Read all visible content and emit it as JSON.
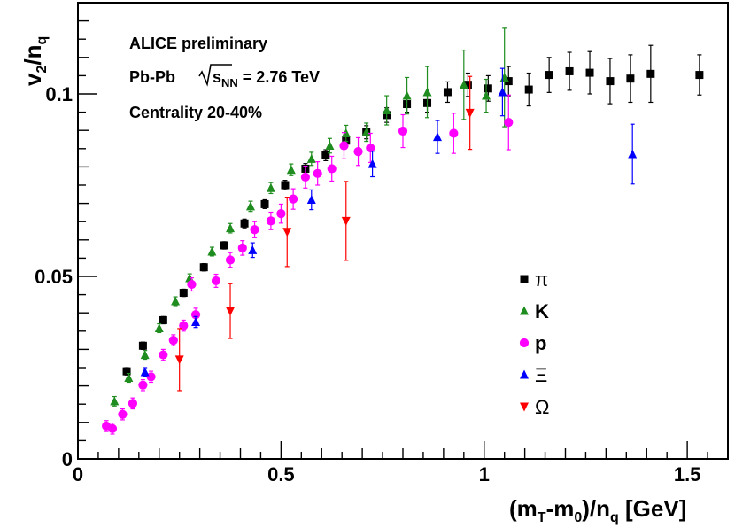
{
  "chart_data": {
    "type": "scatter",
    "title": "",
    "annotations": {
      "line1": "ALICE preliminary",
      "line2_prefix": "Pb-Pb ",
      "line2_sqrt_s": "s",
      "line2_sub": "NN",
      "line2_suffix": " = 2.76 TeV",
      "line3": "Centrality 20-40%"
    },
    "xlabel": {
      "part1": "(m",
      "sub1": "T",
      "part2": "-m",
      "sub2": "0",
      "part3": ")/n",
      "sub3": "q",
      "part4": " [GeV]"
    },
    "ylabel": {
      "main": "v",
      "sub1": "2",
      "mid": "/n",
      "sub2": "q"
    },
    "xlim": [
      0,
      1.6
    ],
    "ylim": [
      0,
      0.125
    ],
    "x_ticks": [
      {
        "value": 0,
        "label": "0"
      },
      {
        "value": 0.5,
        "label": "0.5"
      },
      {
        "value": 1.0,
        "label": "1"
      },
      {
        "value": 1.5,
        "label": "1.5"
      }
    ],
    "y_ticks": [
      {
        "value": 0,
        "label": "0"
      },
      {
        "value": 0.05,
        "label": "0.05"
      },
      {
        "value": 0.1,
        "label": "0.1"
      }
    ],
    "legend_position": "right-middle",
    "series": [
      {
        "name": "π",
        "marker": "square",
        "color": "#000000",
        "legend_bold": false,
        "points": [
          {
            "x": 0.12,
            "y": 0.024,
            "err": 0.001
          },
          {
            "x": 0.16,
            "y": 0.031,
            "err": 0.001
          },
          {
            "x": 0.21,
            "y": 0.038,
            "err": 0.001
          },
          {
            "x": 0.26,
            "y": 0.0455,
            "err": 0.001
          },
          {
            "x": 0.31,
            "y": 0.0525,
            "err": 0.001
          },
          {
            "x": 0.36,
            "y": 0.0585,
            "err": 0.001
          },
          {
            "x": 0.41,
            "y": 0.0645,
            "err": 0.0012
          },
          {
            "x": 0.46,
            "y": 0.0698,
            "err": 0.0012
          },
          {
            "x": 0.51,
            "y": 0.075,
            "err": 0.0013
          },
          {
            "x": 0.56,
            "y": 0.0795,
            "err": 0.0014
          },
          {
            "x": 0.61,
            "y": 0.0832,
            "err": 0.0015
          },
          {
            "x": 0.66,
            "y": 0.0872,
            "err": 0.0016
          },
          {
            "x": 0.71,
            "y": 0.0895,
            "err": 0.0018
          },
          {
            "x": 0.76,
            "y": 0.0942,
            "err": 0.002
          },
          {
            "x": 0.81,
            "y": 0.0972,
            "err": 0.0022
          },
          {
            "x": 0.86,
            "y": 0.0975,
            "err": 0.0025
          },
          {
            "x": 0.91,
            "y": 0.1005,
            "err": 0.0028
          },
          {
            "x": 0.96,
            "y": 0.1025,
            "err": 0.0032
          },
          {
            "x": 1.01,
            "y": 0.1015,
            "err": 0.0035
          },
          {
            "x": 1.06,
            "y": 0.1035,
            "err": 0.004
          },
          {
            "x": 1.11,
            "y": 0.1012,
            "err": 0.0045
          },
          {
            "x": 1.16,
            "y": 0.1052,
            "err": 0.0048
          },
          {
            "x": 1.21,
            "y": 0.1062,
            "err": 0.0052
          },
          {
            "x": 1.26,
            "y": 0.1058,
            "err": 0.0058
          },
          {
            "x": 1.31,
            "y": 0.1035,
            "err": 0.0062
          },
          {
            "x": 1.36,
            "y": 0.1042,
            "err": 0.0065
          },
          {
            "x": 1.41,
            "y": 0.1055,
            "err": 0.0078
          },
          {
            "x": 1.53,
            "y": 0.1052,
            "err": 0.0055
          }
        ]
      },
      {
        "name": "K",
        "marker": "triangle-up",
        "color": "#1e8c1e",
        "legend_bold": true,
        "points": [
          {
            "x": 0.09,
            "y": 0.0158,
            "err": 0.0013
          },
          {
            "x": 0.125,
            "y": 0.0222,
            "err": 0.0012
          },
          {
            "x": 0.165,
            "y": 0.0285,
            "err": 0.0012
          },
          {
            "x": 0.2,
            "y": 0.0358,
            "err": 0.0012
          },
          {
            "x": 0.24,
            "y": 0.0432,
            "err": 0.0012
          },
          {
            "x": 0.275,
            "y": 0.0495,
            "err": 0.0012
          },
          {
            "x": 0.33,
            "y": 0.0568,
            "err": 0.0012
          },
          {
            "x": 0.375,
            "y": 0.0632,
            "err": 0.0013
          },
          {
            "x": 0.425,
            "y": 0.0692,
            "err": 0.0014
          },
          {
            "x": 0.475,
            "y": 0.0742,
            "err": 0.0015
          },
          {
            "x": 0.525,
            "y": 0.0792,
            "err": 0.0016
          },
          {
            "x": 0.575,
            "y": 0.0822,
            "err": 0.0018
          },
          {
            "x": 0.62,
            "y": 0.0858,
            "err": 0.002
          },
          {
            "x": 0.66,
            "y": 0.0892,
            "err": 0.0022
          },
          {
            "x": 0.71,
            "y": 0.0895,
            "err": 0.0025
          },
          {
            "x": 0.76,
            "y": 0.0955,
            "err": 0.004
          },
          {
            "x": 0.81,
            "y": 0.0995,
            "err": 0.005
          },
          {
            "x": 0.86,
            "y": 0.1005,
            "err": 0.007
          },
          {
            "x": 0.95,
            "y": 0.1025,
            "err": 0.0095
          },
          {
            "x": 1.005,
            "y": 0.0995,
            "err": 0.0045
          },
          {
            "x": 1.05,
            "y": 0.1045,
            "err": 0.0135
          }
        ]
      },
      {
        "name": "p",
        "marker": "circle",
        "color": "#ff00ff",
        "legend_bold": true,
        "points": [
          {
            "x": 0.07,
            "y": 0.009,
            "err": 0.0015
          },
          {
            "x": 0.085,
            "y": 0.0083,
            "err": 0.0015
          },
          {
            "x": 0.11,
            "y": 0.0122,
            "err": 0.0015
          },
          {
            "x": 0.135,
            "y": 0.0152,
            "err": 0.0015
          },
          {
            "x": 0.16,
            "y": 0.0202,
            "err": 0.0015
          },
          {
            "x": 0.18,
            "y": 0.0225,
            "err": 0.0015
          },
          {
            "x": 0.21,
            "y": 0.0285,
            "err": 0.0015
          },
          {
            "x": 0.235,
            "y": 0.0325,
            "err": 0.0015
          },
          {
            "x": 0.26,
            "y": 0.0365,
            "err": 0.0015
          },
          {
            "x": 0.28,
            "y": 0.0478,
            "err": 0.0018
          },
          {
            "x": 0.29,
            "y": 0.0395,
            "err": 0.0018
          },
          {
            "x": 0.34,
            "y": 0.0488,
            "err": 0.0018
          },
          {
            "x": 0.375,
            "y": 0.0545,
            "err": 0.002
          },
          {
            "x": 0.405,
            "y": 0.0578,
            "err": 0.002
          },
          {
            "x": 0.435,
            "y": 0.0628,
            "err": 0.0022
          },
          {
            "x": 0.475,
            "y": 0.0652,
            "err": 0.0024
          },
          {
            "x": 0.5,
            "y": 0.0672,
            "err": 0.0026
          },
          {
            "x": 0.53,
            "y": 0.0712,
            "err": 0.0028
          },
          {
            "x": 0.56,
            "y": 0.0772,
            "err": 0.003
          },
          {
            "x": 0.59,
            "y": 0.0782,
            "err": 0.0032
          },
          {
            "x": 0.625,
            "y": 0.0795,
            "err": 0.0034
          },
          {
            "x": 0.655,
            "y": 0.0858,
            "err": 0.0036
          },
          {
            "x": 0.69,
            "y": 0.0842,
            "err": 0.0038
          },
          {
            "x": 0.72,
            "y": 0.0852,
            "err": 0.004
          },
          {
            "x": 0.8,
            "y": 0.0898,
            "err": 0.0045
          },
          {
            "x": 0.925,
            "y": 0.0892,
            "err": 0.0055
          },
          {
            "x": 1.06,
            "y": 0.0922,
            "err": 0.0075
          }
        ]
      },
      {
        "name": "Ξ",
        "marker": "triangle-up",
        "color": "#0000ff",
        "legend_bold": false,
        "points": [
          {
            "x": 0.165,
            "y": 0.0238,
            "err": 0.0012
          },
          {
            "x": 0.29,
            "y": 0.0375,
            "err": 0.0015
          },
          {
            "x": 0.43,
            "y": 0.0572,
            "err": 0.002
          },
          {
            "x": 0.575,
            "y": 0.071,
            "err": 0.0027
          },
          {
            "x": 0.725,
            "y": 0.0808,
            "err": 0.0035
          },
          {
            "x": 0.885,
            "y": 0.0882,
            "err": 0.0045
          },
          {
            "x": 1.045,
            "y": 0.1005,
            "err": 0.0065
          },
          {
            "x": 1.365,
            "y": 0.0835,
            "err": 0.0082
          }
        ]
      },
      {
        "name": "Ω",
        "marker": "triangle-down",
        "color": "#ff0000",
        "legend_bold": false,
        "points": [
          {
            "x": 0.25,
            "y": 0.0272,
            "err": 0.0085
          },
          {
            "x": 0.375,
            "y": 0.0405,
            "err": 0.0075
          },
          {
            "x": 0.515,
            "y": 0.0622,
            "err": 0.0095
          },
          {
            "x": 0.66,
            "y": 0.0652,
            "err": 0.0108
          },
          {
            "x": 0.965,
            "y": 0.0948,
            "err": 0.01
          }
        ]
      }
    ]
  }
}
